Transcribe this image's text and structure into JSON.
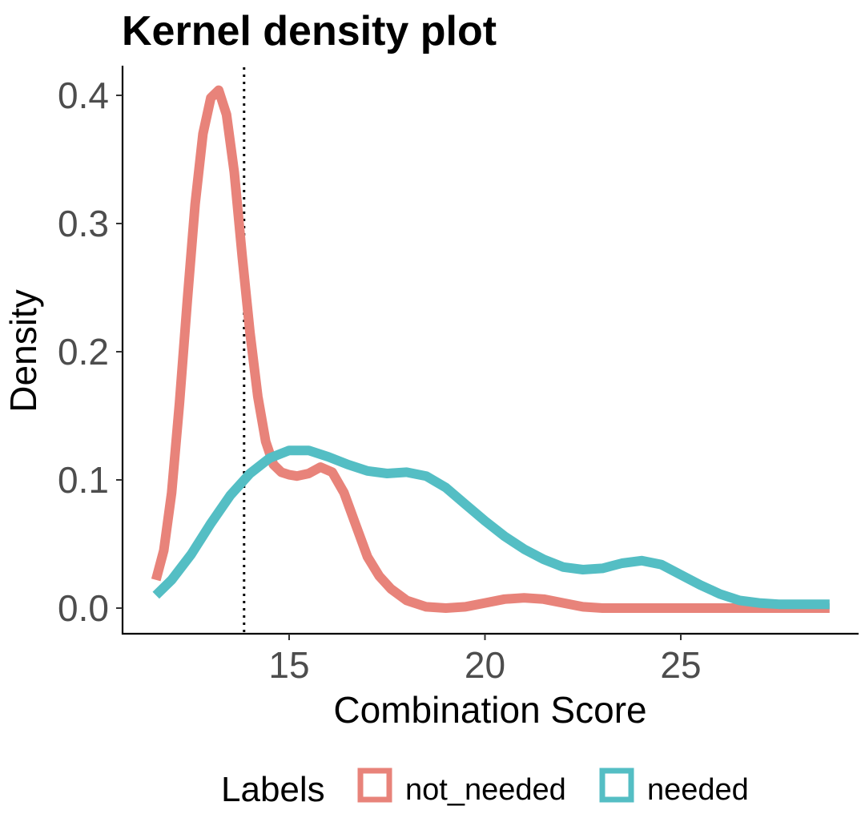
{
  "chart_data": {
    "type": "line",
    "title": "Kernel density plot",
    "xlabel": "Combination Score",
    "ylabel": "Density",
    "xlim": [
      11.5,
      29.0
    ],
    "ylim": [
      0.0,
      0.42
    ],
    "x_ticks": [
      15,
      20,
      25
    ],
    "x_tick_labels": [
      "15",
      "20",
      "25"
    ],
    "y_ticks": [
      0.0,
      0.1,
      0.2,
      0.3,
      0.4
    ],
    "y_tick_labels": [
      "0.0",
      "0.1",
      "0.2",
      "0.3",
      "0.4"
    ],
    "grid": false,
    "reference_line": {
      "x": 13.85,
      "style": "dotted"
    },
    "legend": {
      "title": "Labels",
      "position": "bottom"
    },
    "series": [
      {
        "name": "not_needed",
        "color": "#E8837A",
        "points": [
          [
            11.6,
            0.022
          ],
          [
            11.8,
            0.045
          ],
          [
            12.0,
            0.09
          ],
          [
            12.2,
            0.16
          ],
          [
            12.4,
            0.24
          ],
          [
            12.6,
            0.315
          ],
          [
            12.8,
            0.37
          ],
          [
            13.0,
            0.398
          ],
          [
            13.2,
            0.404
          ],
          [
            13.4,
            0.385
          ],
          [
            13.6,
            0.34
          ],
          [
            13.8,
            0.275
          ],
          [
            14.0,
            0.215
          ],
          [
            14.2,
            0.165
          ],
          [
            14.4,
            0.13
          ],
          [
            14.6,
            0.112
          ],
          [
            14.8,
            0.106
          ],
          [
            15.0,
            0.104
          ],
          [
            15.2,
            0.103
          ],
          [
            15.5,
            0.105
          ],
          [
            15.8,
            0.11
          ],
          [
            16.1,
            0.106
          ],
          [
            16.4,
            0.09
          ],
          [
            16.7,
            0.065
          ],
          [
            17.0,
            0.04
          ],
          [
            17.3,
            0.025
          ],
          [
            17.6,
            0.015
          ],
          [
            18.0,
            0.006
          ],
          [
            18.5,
            0.001
          ],
          [
            19.0,
            0.0
          ],
          [
            19.5,
            0.001
          ],
          [
            20.0,
            0.004
          ],
          [
            20.5,
            0.007
          ],
          [
            21.0,
            0.008
          ],
          [
            21.5,
            0.007
          ],
          [
            22.0,
            0.004
          ],
          [
            22.5,
            0.001
          ],
          [
            23.0,
            0.0
          ],
          [
            24.0,
            0.0
          ],
          [
            25.0,
            0.0
          ],
          [
            26.0,
            0.0
          ],
          [
            27.0,
            0.0
          ],
          [
            28.0,
            0.0
          ],
          [
            28.8,
            0.0
          ]
        ]
      },
      {
        "name": "needed",
        "color": "#54BEC4",
        "points": [
          [
            11.6,
            0.01
          ],
          [
            12.0,
            0.022
          ],
          [
            12.5,
            0.042
          ],
          [
            13.0,
            0.066
          ],
          [
            13.5,
            0.088
          ],
          [
            14.0,
            0.105
          ],
          [
            14.5,
            0.117
          ],
          [
            15.0,
            0.123
          ],
          [
            15.5,
            0.123
          ],
          [
            16.0,
            0.118
          ],
          [
            16.5,
            0.112
          ],
          [
            17.0,
            0.107
          ],
          [
            17.5,
            0.105
          ],
          [
            18.0,
            0.106
          ],
          [
            18.5,
            0.103
          ],
          [
            19.0,
            0.094
          ],
          [
            19.5,
            0.081
          ],
          [
            20.0,
            0.068
          ],
          [
            20.5,
            0.056
          ],
          [
            21.0,
            0.046
          ],
          [
            21.5,
            0.038
          ],
          [
            22.0,
            0.032
          ],
          [
            22.5,
            0.03
          ],
          [
            23.0,
            0.031
          ],
          [
            23.5,
            0.035
          ],
          [
            24.0,
            0.037
          ],
          [
            24.5,
            0.034
          ],
          [
            25.0,
            0.026
          ],
          [
            25.5,
            0.018
          ],
          [
            26.0,
            0.011
          ],
          [
            26.5,
            0.006
          ],
          [
            27.0,
            0.004
          ],
          [
            27.5,
            0.003
          ],
          [
            28.0,
            0.003
          ],
          [
            28.8,
            0.003
          ]
        ]
      }
    ]
  }
}
